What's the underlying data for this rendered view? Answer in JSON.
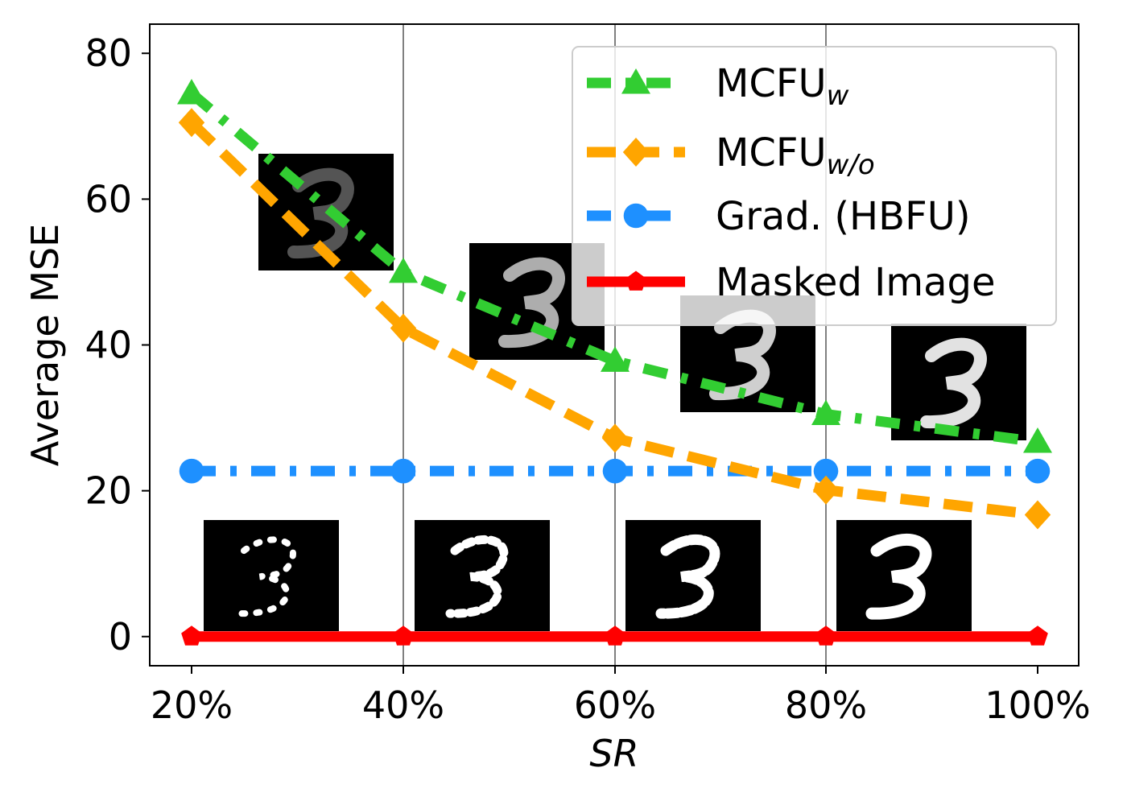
{
  "chart_data": {
    "type": "line",
    "title": "",
    "xlabel": "SR",
    "ylabel": "Average MSE",
    "categories": [
      "20%",
      "40%",
      "60%",
      "80%",
      "100%"
    ],
    "ylim": [
      -4,
      84
    ],
    "yticks": [
      0,
      20,
      40,
      60,
      80
    ],
    "grid": "vertical",
    "legend_position": "top-right",
    "series": [
      {
        "name": "MCFU",
        "subscript": "w",
        "color": "#32CD32",
        "marker": "triangle",
        "dash": "dashdot",
        "values": [
          74.5,
          50,
          37.8,
          30.5,
          26.7
        ]
      },
      {
        "name": "MCFU",
        "subscript": "w/o",
        "color": "#FFA500",
        "marker": "diamond",
        "dash": "dashed",
        "values": [
          70.5,
          42.3,
          27.2,
          20.1,
          16.7
        ]
      },
      {
        "name": "Grad. (HBFU)",
        "subscript": "",
        "color": "#1E90FF",
        "marker": "circle",
        "dash": "dashdot",
        "values": [
          22.7,
          22.7,
          22.7,
          22.7,
          22.7
        ]
      },
      {
        "name": "Masked Image",
        "subscript": "",
        "color": "#FF0000",
        "marker": "pentagon",
        "dash": "solid",
        "values": [
          0,
          0,
          0,
          0,
          0
        ]
      }
    ]
  }
}
